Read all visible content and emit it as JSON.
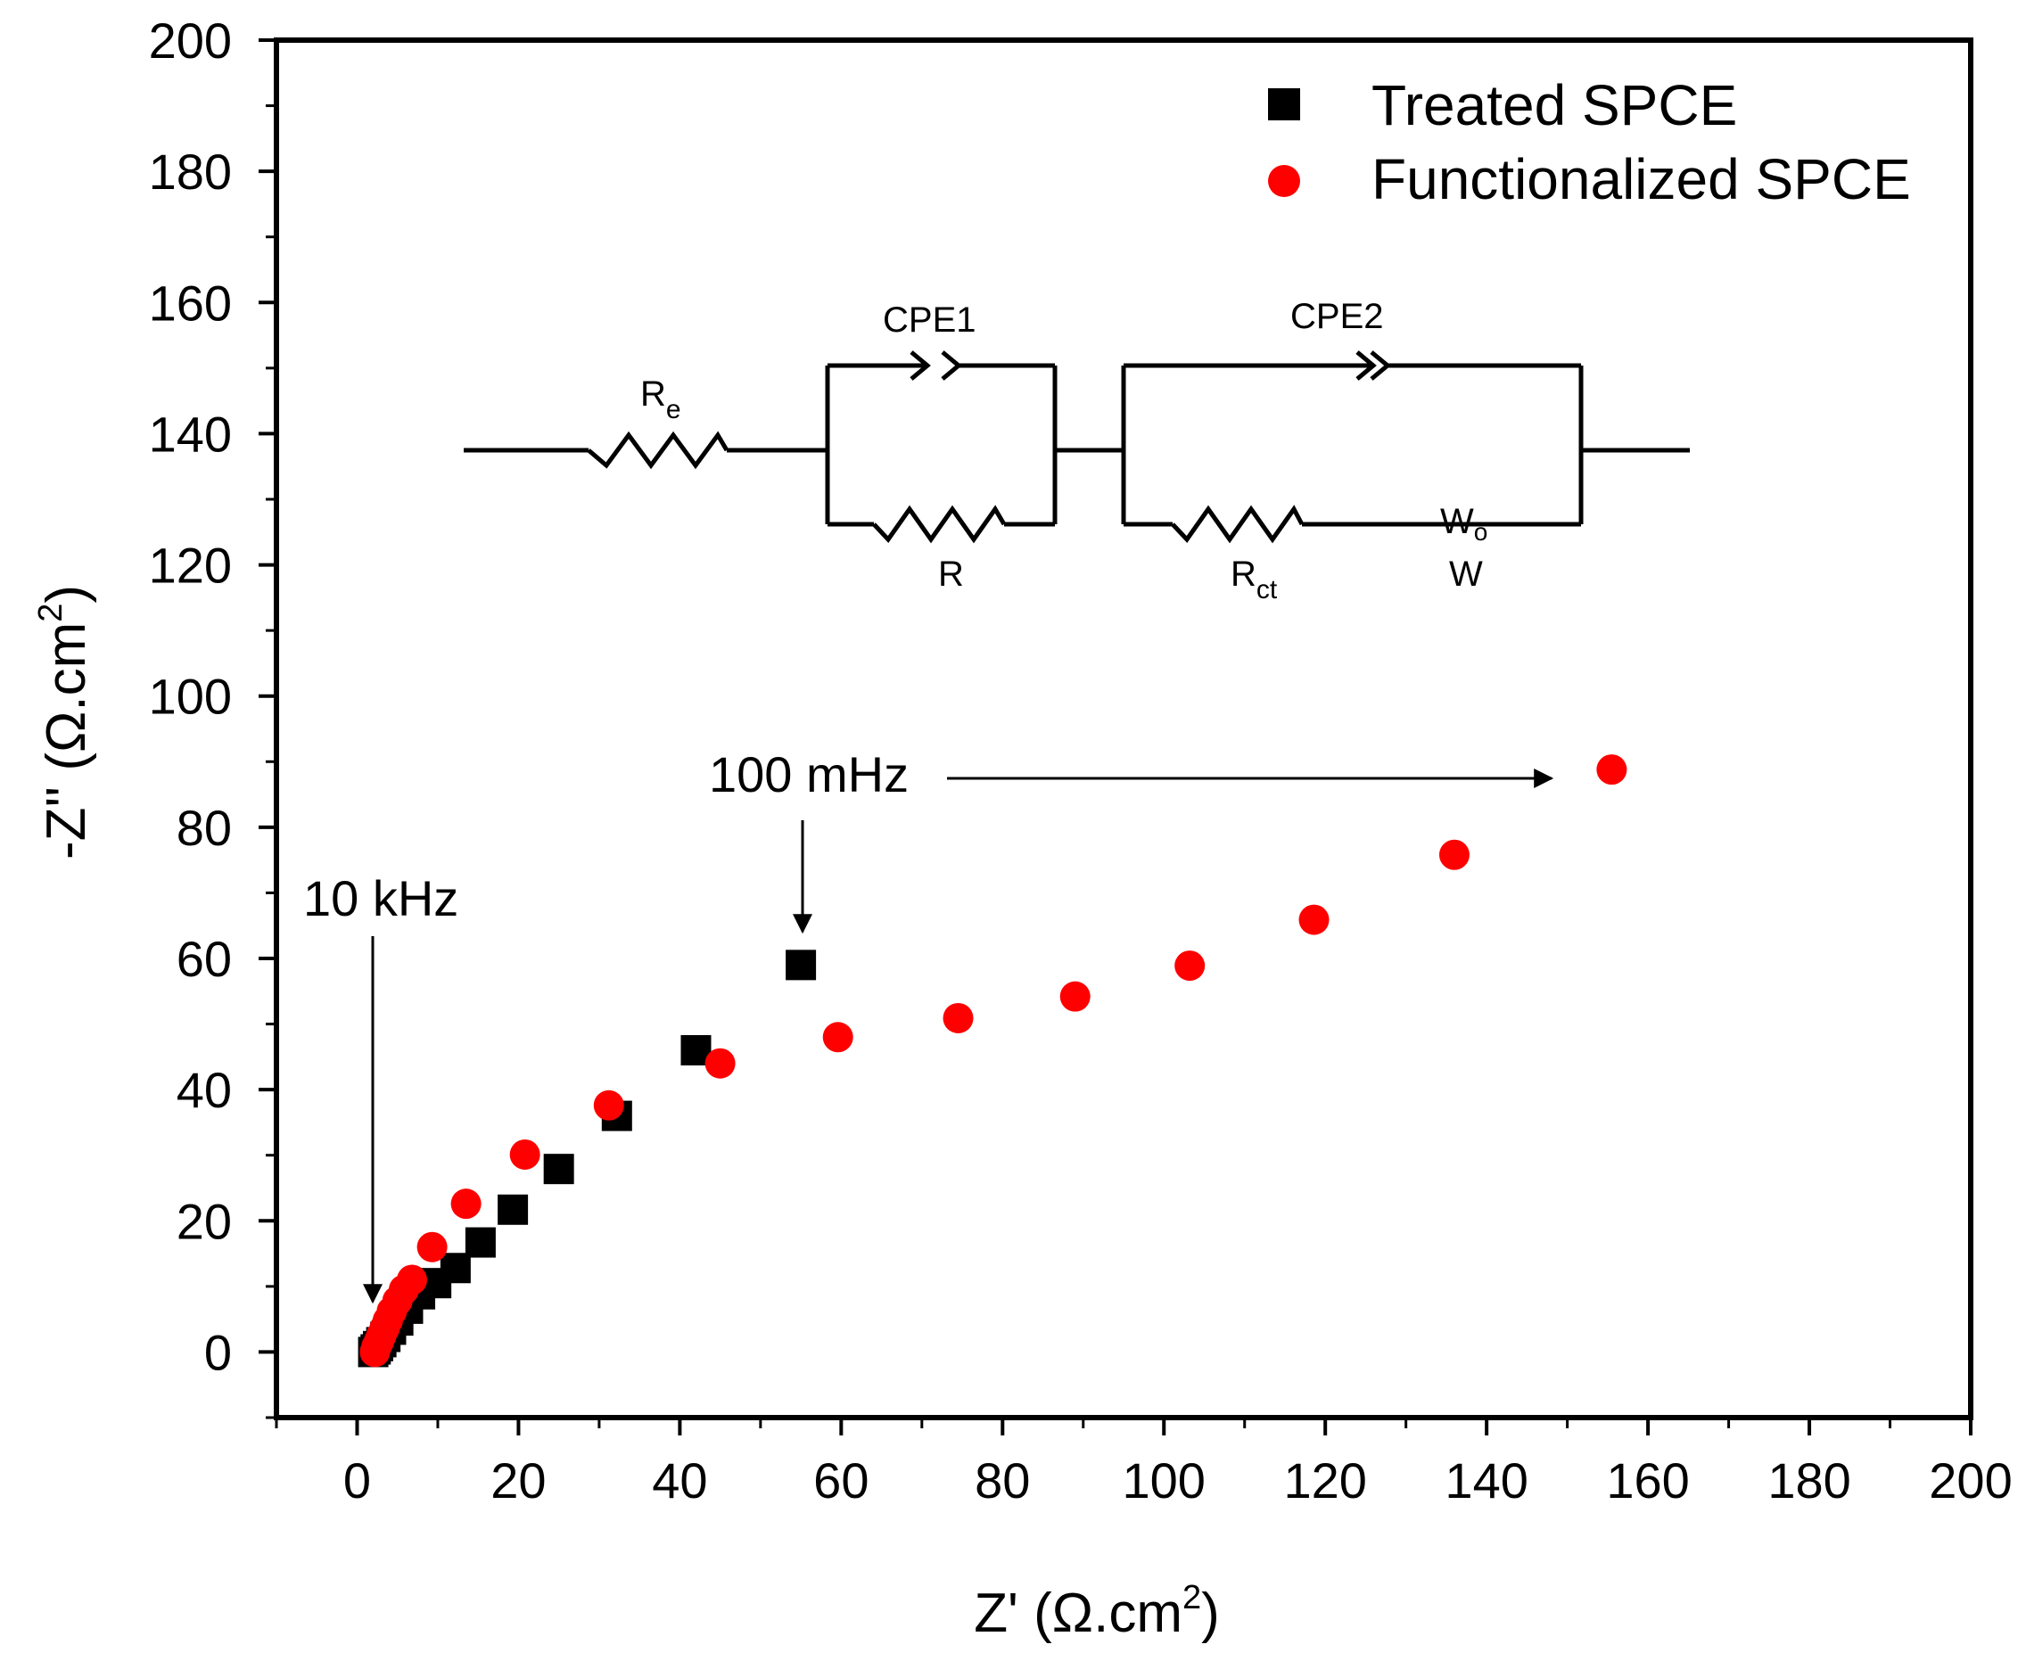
{
  "chart_data": {
    "type": "scatter",
    "title": "",
    "xlabel": {
      "main": "Z' (Ω.cm",
      "sup": "2",
      "end": ")"
    },
    "ylabel": {
      "main": "-Z'' (Ω.cm",
      "sup": "2",
      "end": ")"
    },
    "xlim": [
      -10,
      200
    ],
    "ylim": [
      -10,
      200
    ],
    "x_ticks": [
      0,
      20,
      40,
      60,
      80,
      100,
      120,
      140,
      160,
      180,
      200
    ],
    "y_ticks": [
      0,
      20,
      40,
      60,
      80,
      100,
      120,
      140,
      160,
      180,
      200
    ],
    "x_tick_labels": [
      "0",
      "20",
      "40",
      "60",
      "80",
      "100",
      "120",
      "140",
      "160",
      "180",
      "200"
    ],
    "y_tick_labels": [
      "0",
      "20",
      "40",
      "60",
      "80",
      "100",
      "120",
      "140",
      "160",
      "180",
      "200"
    ],
    "legend_position": "top-right",
    "series": [
      {
        "name": "Treated SPCE",
        "marker": "square",
        "color": "#000000",
        "x": [
          2.0,
          2.3,
          2.6,
          3.0,
          3.5,
          4.2,
          5.1,
          6.3,
          7.8,
          9.8,
          12.2,
          15.3,
          19.3,
          25.0,
          32.2,
          42.0,
          55.0
        ],
        "y": [
          0.0,
          0.4,
          0.9,
          1.5,
          2.3,
          3.4,
          4.8,
          6.6,
          8.8,
          10.5,
          12.8,
          16.7,
          21.7,
          27.9,
          36.0,
          46.0,
          59.0
        ]
      },
      {
        "name": "Functionalized SPCE",
        "marker": "circle",
        "color": "#ff0000",
        "x": [
          2.2,
          2.4,
          2.7,
          3.0,
          3.4,
          3.8,
          4.3,
          5.0,
          5.8,
          6.8,
          9.3,
          13.5,
          20.8,
          31.2,
          45.0,
          59.6,
          74.5,
          89.0,
          103.2,
          118.6,
          136.0,
          155.5
        ],
        "y": [
          0.0,
          0.8,
          1.6,
          2.5,
          3.6,
          4.8,
          6.2,
          7.8,
          9.5,
          11.0,
          16.0,
          22.6,
          30.1,
          37.6,
          44.0,
          48.0,
          50.9,
          54.2,
          58.9,
          65.9,
          75.8,
          88.8
        ]
      }
    ],
    "annotations": [
      {
        "text": "10 kHz",
        "x": 1.5,
        "y": 0
      },
      {
        "text": "100 mHz",
        "x": 55,
        "y": 59,
        "target_x": 155.5,
        "target_y": 88.8
      }
    ],
    "inset_circuit": {
      "labels": {
        "re_main": "R",
        "re_sub": "e",
        "r": "R",
        "cpe1": "CPE1",
        "cpe2": "CPE2",
        "rct_main": "R",
        "rct_sub": "ct",
        "wo_main": "W",
        "wo_sub": "o",
        "w": "W"
      }
    }
  }
}
